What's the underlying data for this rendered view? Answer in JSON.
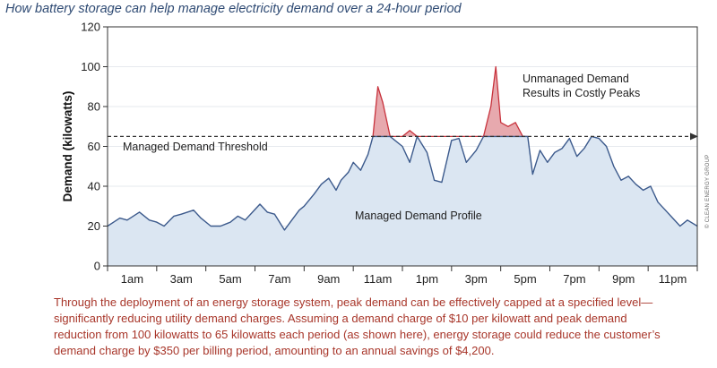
{
  "page": {
    "title": "How battery storage can help manage electricity demand over a 24-hour period",
    "caption": [
      "Through the deployment of an energy storage system, peak demand can be effectively capped at a specified level—",
      "significantly reducing utility demand charges. Assuming a demand charge of $10 per kilowatt and peak demand",
      "reduction from 100 kilowatts to 65 kilowatts each period (as shown here), energy storage could reduce the customer’s",
      "demand charge by $350 per billing period, amounting to an annual savings of $4,200."
    ],
    "copyright": "© CLEAN ENERGY GROUP"
  },
  "colors": {
    "fill": "#dbe6f2",
    "line": "#3c5a8c",
    "peak_fill": "#e7a9ae",
    "peak_line": "#c8323c",
    "axis": "#333333",
    "caption": "#a8362a",
    "title": "#2e4a73"
  },
  "chart_data": {
    "type": "area",
    "ylabel": "Demand (kilowatts)",
    "xlabel": "",
    "ylim": [
      0,
      120
    ],
    "y_ticks": [
      0,
      20,
      40,
      60,
      80,
      100,
      120
    ],
    "x_tick_labels": [
      "1am",
      "3am",
      "5am",
      "7am",
      "9am",
      "11am",
      "1pm",
      "3pm",
      "5pm",
      "7pm",
      "9pm",
      "11pm"
    ],
    "x_tick_positions_hours": [
      1,
      3,
      5,
      7,
      9,
      11,
      13,
      15,
      17,
      19,
      21,
      23
    ],
    "xlim_hours": [
      0,
      24
    ],
    "threshold": 65,
    "annotations": {
      "threshold_label": "Managed Demand Threshold",
      "profile_label": "Managed Demand Profile",
      "peaks_label": [
        "Unmanaged Demand",
        "Results in Costly Peaks"
      ]
    },
    "series": [
      {
        "name": "Unmanaged Demand",
        "x_hours": [
          10.8,
          11.0,
          11.2,
          11.5,
          12.0,
          12.3,
          12.6,
          15.3,
          15.6,
          15.8,
          16.0,
          16.3,
          16.6,
          16.9,
          17.1
        ],
        "values": [
          65,
          90,
          82,
          65,
          65,
          68,
          65,
          65,
          80,
          100,
          72,
          70,
          72,
          65,
          65
        ]
      },
      {
        "name": "Managed Demand Profile",
        "x_hours": [
          0.0,
          0.5,
          0.8,
          1.3,
          1.7,
          2.0,
          2.3,
          2.7,
          3.0,
          3.5,
          3.8,
          4.2,
          4.6,
          5.0,
          5.3,
          5.6,
          5.9,
          6.2,
          6.5,
          6.8,
          7.2,
          7.5,
          7.8,
          8.0,
          8.4,
          8.7,
          9.0,
          9.3,
          9.5,
          9.8,
          10.0,
          10.3,
          10.6,
          10.8,
          11.5,
          12.0,
          12.3,
          12.6,
          13.0,
          13.3,
          13.6,
          14.0,
          14.3,
          14.6,
          15.0,
          15.3,
          17.1,
          17.3,
          17.6,
          17.9,
          18.2,
          18.5,
          18.8,
          19.1,
          19.4,
          19.7,
          20.0,
          20.3,
          20.6,
          20.9,
          21.2,
          21.5,
          21.8,
          22.1,
          22.4,
          22.7,
          23.0,
          23.3,
          23.6,
          24.0
        ],
        "values": [
          20,
          24,
          23,
          27,
          23,
          22,
          20,
          25,
          26,
          28,
          24,
          20,
          20,
          22,
          25,
          23,
          27,
          31,
          27,
          26,
          18,
          23,
          28,
          30,
          36,
          41,
          44,
          38,
          43,
          47,
          52,
          48,
          56,
          65,
          65,
          60,
          52,
          65,
          57,
          43,
          42,
          63,
          64,
          52,
          58,
          65,
          65,
          46,
          58,
          52,
          57,
          59,
          64,
          55,
          59,
          65,
          64,
          60,
          50,
          43,
          45,
          41,
          38,
          40,
          32,
          28,
          24,
          20,
          23,
          20
        ]
      }
    ]
  }
}
